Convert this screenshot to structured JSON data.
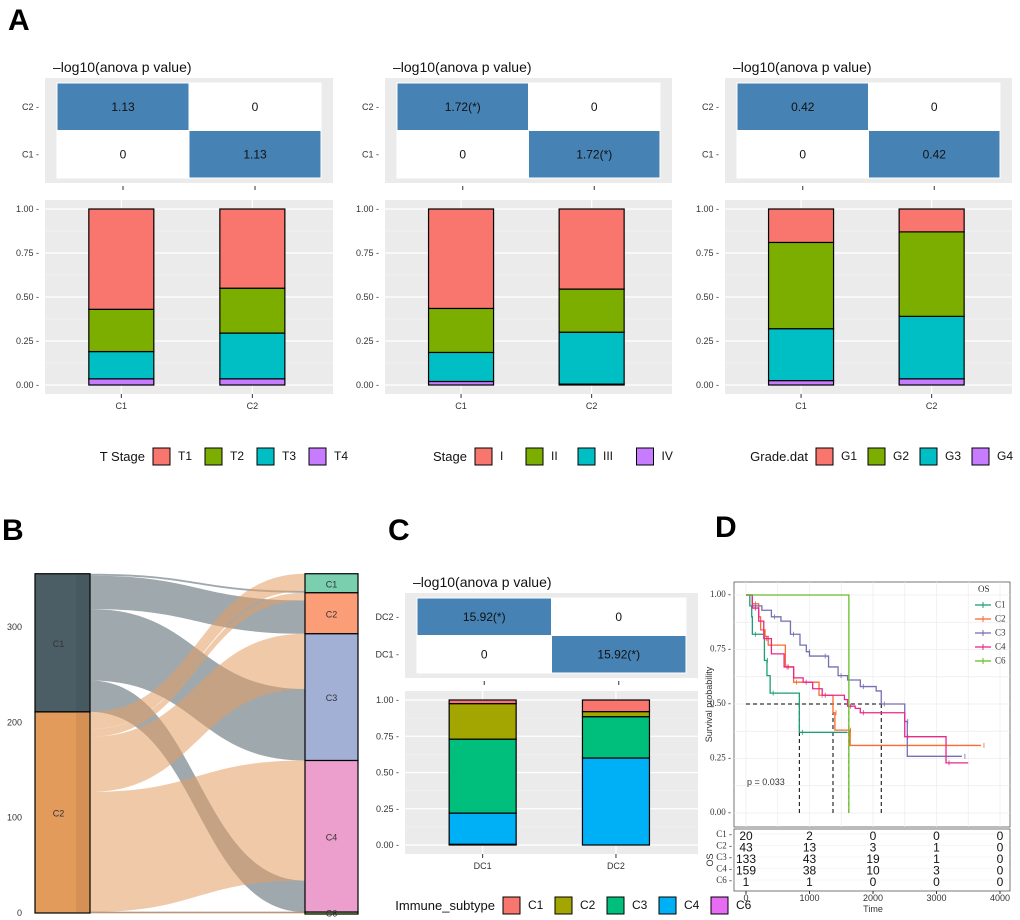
{
  "panel_labels": {
    "A": "A",
    "B": "B",
    "C": "C",
    "D": "D"
  },
  "colors": {
    "heat_high": "#4682b4",
    "panel_bg": "#ebebeb",
    "c_red": "#f8766d",
    "c_green": "#7cae00",
    "c_cyan": "#00bfc4",
    "c_purple": "#c77cff"
  },
  "chart_data": [
    {
      "id": "A1",
      "type": "bar",
      "heatmap": {
        "title": "–log10(anova p value)",
        "rows": [
          "C2",
          "C1"
        ],
        "cells": [
          [
            "1.13",
            "0"
          ],
          [
            "0",
            "1.13"
          ]
        ]
      },
      "categories": [
        "C1",
        "C2"
      ],
      "legend_title": "T Stage",
      "series": [
        {
          "name": "T1",
          "color": "#f8766d",
          "values": [
            0.57,
            0.45
          ]
        },
        {
          "name": "T2",
          "color": "#7cae00",
          "values": [
            0.24,
            0.255
          ]
        },
        {
          "name": "T3",
          "color": "#00bfc4",
          "values": [
            0.155,
            0.26
          ]
        },
        {
          "name": "T4",
          "color": "#c77cff",
          "values": [
            0.035,
            0.035
          ]
        }
      ],
      "yticks": [
        "0.00",
        "0.25",
        "0.50",
        "0.75",
        "1.00"
      ],
      "ylim": [
        0,
        1
      ],
      "legend": "bottom"
    },
    {
      "id": "A2",
      "type": "bar",
      "heatmap": {
        "title": "–log10(anova p value)",
        "rows": [
          "C2",
          "C1"
        ],
        "cells": [
          [
            "1.72(*)",
            "0"
          ],
          [
            "0",
            "1.72(*)"
          ]
        ]
      },
      "categories": [
        "C1",
        "C2"
      ],
      "legend_title": "Stage",
      "series": [
        {
          "name": "I",
          "color": "#f8766d",
          "values": [
            0.565,
            0.455
          ]
        },
        {
          "name": "II",
          "color": "#7cae00",
          "values": [
            0.25,
            0.245
          ]
        },
        {
          "name": "III",
          "color": "#00bfc4",
          "values": [
            0.165,
            0.295
          ]
        },
        {
          "name": "IV",
          "color": "#c77cff",
          "values": [
            0.02,
            0.005
          ]
        }
      ],
      "yticks": [
        "0.00",
        "0.25",
        "0.50",
        "0.75",
        "1.00"
      ],
      "ylim": [
        0,
        1
      ],
      "legend": "bottom"
    },
    {
      "id": "A3",
      "type": "bar",
      "heatmap": {
        "title": "–log10(anova p value)",
        "rows": [
          "C2",
          "C1"
        ],
        "cells": [
          [
            "0.42",
            "0"
          ],
          [
            "0",
            "0.42"
          ]
        ]
      },
      "categories": [
        "C1",
        "C2"
      ],
      "legend_title": "Grade.dat",
      "series": [
        {
          "name": "G1",
          "color": "#f8766d",
          "values": [
            0.19,
            0.13
          ]
        },
        {
          "name": "G2",
          "color": "#7cae00",
          "values": [
            0.49,
            0.48
          ]
        },
        {
          "name": "G3",
          "color": "#00bfc4",
          "values": [
            0.295,
            0.355
          ]
        },
        {
          "name": "G4",
          "color": "#c77cff",
          "values": [
            0.025,
            0.035
          ]
        }
      ],
      "yticks": [
        "0.00",
        "0.25",
        "0.50",
        "0.75",
        "1.00"
      ],
      "ylim": [
        0,
        1
      ],
      "legend": "bottom"
    },
    {
      "id": "B",
      "type": "sankey",
      "yticks": [
        "0",
        "100",
        "200",
        "300"
      ],
      "left_nodes": [
        {
          "name": "C1",
          "value": 145,
          "color": "#4b5e66"
        },
        {
          "name": "C2",
          "value": 211,
          "color": "#e39b5b"
        }
      ],
      "right_nodes": [
        {
          "name": "C1",
          "value": 20,
          "color": "#79cfae"
        },
        {
          "name": "C2",
          "value": 43,
          "color": "#fb9e78"
        },
        {
          "name": "C3",
          "value": 133,
          "color": "#a2b0d6"
        },
        {
          "name": "C4",
          "value": 159,
          "color": "#ec9fcd"
        },
        {
          "name": "C6",
          "value": 1,
          "color": "#a3d36b"
        }
      ],
      "flows": [
        {
          "from": "C1",
          "to": "C1",
          "value": 2
        },
        {
          "from": "C1",
          "to": "C2",
          "value": 35
        },
        {
          "from": "C1",
          "to": "C3",
          "value": 75
        },
        {
          "from": "C1",
          "to": "C4",
          "value": 33
        },
        {
          "from": "C2",
          "to": "C1",
          "value": 18
        },
        {
          "from": "C2",
          "to": "C2",
          "value": 8
        },
        {
          "from": "C2",
          "to": "C3",
          "value": 58
        },
        {
          "from": "C2",
          "to": "C4",
          "value": 126
        },
        {
          "from": "C2",
          "to": "C6",
          "value": 1
        }
      ]
    },
    {
      "id": "C",
      "type": "bar",
      "heatmap": {
        "title": "–log10(anova p value)",
        "rows": [
          "DC2",
          "DC1"
        ],
        "cells": [
          [
            "15.92(*)",
            "0"
          ],
          [
            "0",
            "15.92(*)"
          ]
        ]
      },
      "categories": [
        "DC1",
        "DC2"
      ],
      "legend_title": "Immune_subtype",
      "series": [
        {
          "name": "C1",
          "color": "#f8766d",
          "values": [
            0.025,
            0.08
          ]
        },
        {
          "name": "C2",
          "color": "#a3a500",
          "values": [
            0.245,
            0.035
          ]
        },
        {
          "name": "C3",
          "color": "#00bf7d",
          "values": [
            0.51,
            0.285
          ]
        },
        {
          "name": "C4",
          "color": "#00b0f6",
          "values": [
            0.215,
            0.6
          ]
        },
        {
          "name": "C6",
          "color": "#e76bf3",
          "values": [
            0.005,
            0.0
          ]
        }
      ],
      "yticks": [
        "0.00",
        "0.25",
        "0.50",
        "0.75",
        "1.00"
      ],
      "ylim": [
        0,
        1
      ],
      "legend": "bottom"
    },
    {
      "id": "D",
      "type": "line",
      "title": "",
      "xlabel": "Time",
      "ylabel": "Survival probability",
      "xlim": [
        0,
        4000
      ],
      "ylim": [
        0,
        1
      ],
      "xticks": [
        "0",
        "1000",
        "2000",
        "3000",
        "4000"
      ],
      "yticks": [
        "0.00",
        "0.25",
        "0.50",
        "0.75",
        "1.00"
      ],
      "legend_title": "OS",
      "legend": "top-right",
      "pvalue": "p = 0.033",
      "medians": [
        840,
        1370,
        1620,
        2130
      ],
      "series": [
        {
          "name": "C1",
          "color": "#1b9e77",
          "points": [
            [
              0,
              1
            ],
            [
              60,
              0.95
            ],
            [
              90,
              0.9
            ],
            [
              100,
              0.82
            ],
            [
              280,
              0.82
            ],
            [
              290,
              0.7
            ],
            [
              330,
              0.63
            ],
            [
              380,
              0.55
            ],
            [
              840,
              0.55
            ],
            [
              840,
              0.37
            ],
            [
              1600,
              0.37
            ]
          ]
        },
        {
          "name": "C2",
          "color": "#fc6a2c",
          "points": [
            [
              0,
              1
            ],
            [
              100,
              0.96
            ],
            [
              200,
              0.9
            ],
            [
              230,
              0.84
            ],
            [
              300,
              0.81
            ],
            [
              350,
              0.77
            ],
            [
              600,
              0.77
            ],
            [
              620,
              0.67
            ],
            [
              730,
              0.67
            ],
            [
              750,
              0.6
            ],
            [
              1100,
              0.6
            ],
            [
              1150,
              0.54
            ],
            [
              1370,
              0.54
            ],
            [
              1370,
              0.46
            ],
            [
              1400,
              0.38
            ],
            [
              1600,
              0.38
            ],
            [
              1640,
              0.31
            ],
            [
              3700,
              0.31
            ]
          ]
        },
        {
          "name": "C3",
          "color": "#7570b3",
          "points": [
            [
              0,
              1
            ],
            [
              100,
              0.95
            ],
            [
              250,
              0.93
            ],
            [
              400,
              0.9
            ],
            [
              550,
              0.88
            ],
            [
              700,
              0.82
            ],
            [
              850,
              0.77
            ],
            [
              950,
              0.74
            ],
            [
              1000,
              0.72
            ],
            [
              1200,
              0.72
            ],
            [
              1300,
              0.67
            ],
            [
              1450,
              0.63
            ],
            [
              1600,
              0.61
            ],
            [
              1800,
              0.58
            ],
            [
              2050,
              0.56
            ],
            [
              2130,
              0.5
            ],
            [
              2450,
              0.5
            ],
            [
              2500,
              0.42
            ],
            [
              2540,
              0.26
            ],
            [
              3400,
              0.26
            ]
          ]
        },
        {
          "name": "C4",
          "color": "#e7298a",
          "points": [
            [
              0,
              1
            ],
            [
              100,
              0.94
            ],
            [
              200,
              0.88
            ],
            [
              280,
              0.8
            ],
            [
              400,
              0.73
            ],
            [
              600,
              0.67
            ],
            [
              750,
              0.62
            ],
            [
              900,
              0.6
            ],
            [
              1050,
              0.57
            ],
            [
              1200,
              0.54
            ],
            [
              1550,
              0.52
            ],
            [
              1600,
              0.49
            ],
            [
              1720,
              0.48
            ],
            [
              1800,
              0.46
            ],
            [
              2450,
              0.46
            ],
            [
              2500,
              0.35
            ],
            [
              3100,
              0.35
            ],
            [
              3150,
              0.23
            ],
            [
              3500,
              0.23
            ]
          ]
        },
        {
          "name": "C6",
          "color": "#66bd2a",
          "points": [
            [
              0,
              1
            ],
            [
              1620,
              1
            ],
            [
              1620,
              0
            ]
          ]
        }
      ],
      "risk_table": {
        "ylabel": "OS",
        "rows": [
          {
            "name": "C1",
            "counts": [
              "20",
              "2",
              "0",
              "0",
              "0"
            ]
          },
          {
            "name": "C2",
            "counts": [
              "43",
              "13",
              "3",
              "1",
              "0"
            ]
          },
          {
            "name": "C3",
            "counts": [
              "133",
              "43",
              "19",
              "1",
              "0"
            ]
          },
          {
            "name": "C4",
            "counts": [
              "159",
              "38",
              "10",
              "3",
              "0"
            ]
          },
          {
            "name": "C6",
            "counts": [
              "1",
              "1",
              "0",
              "0",
              "0"
            ]
          }
        ]
      }
    }
  ]
}
